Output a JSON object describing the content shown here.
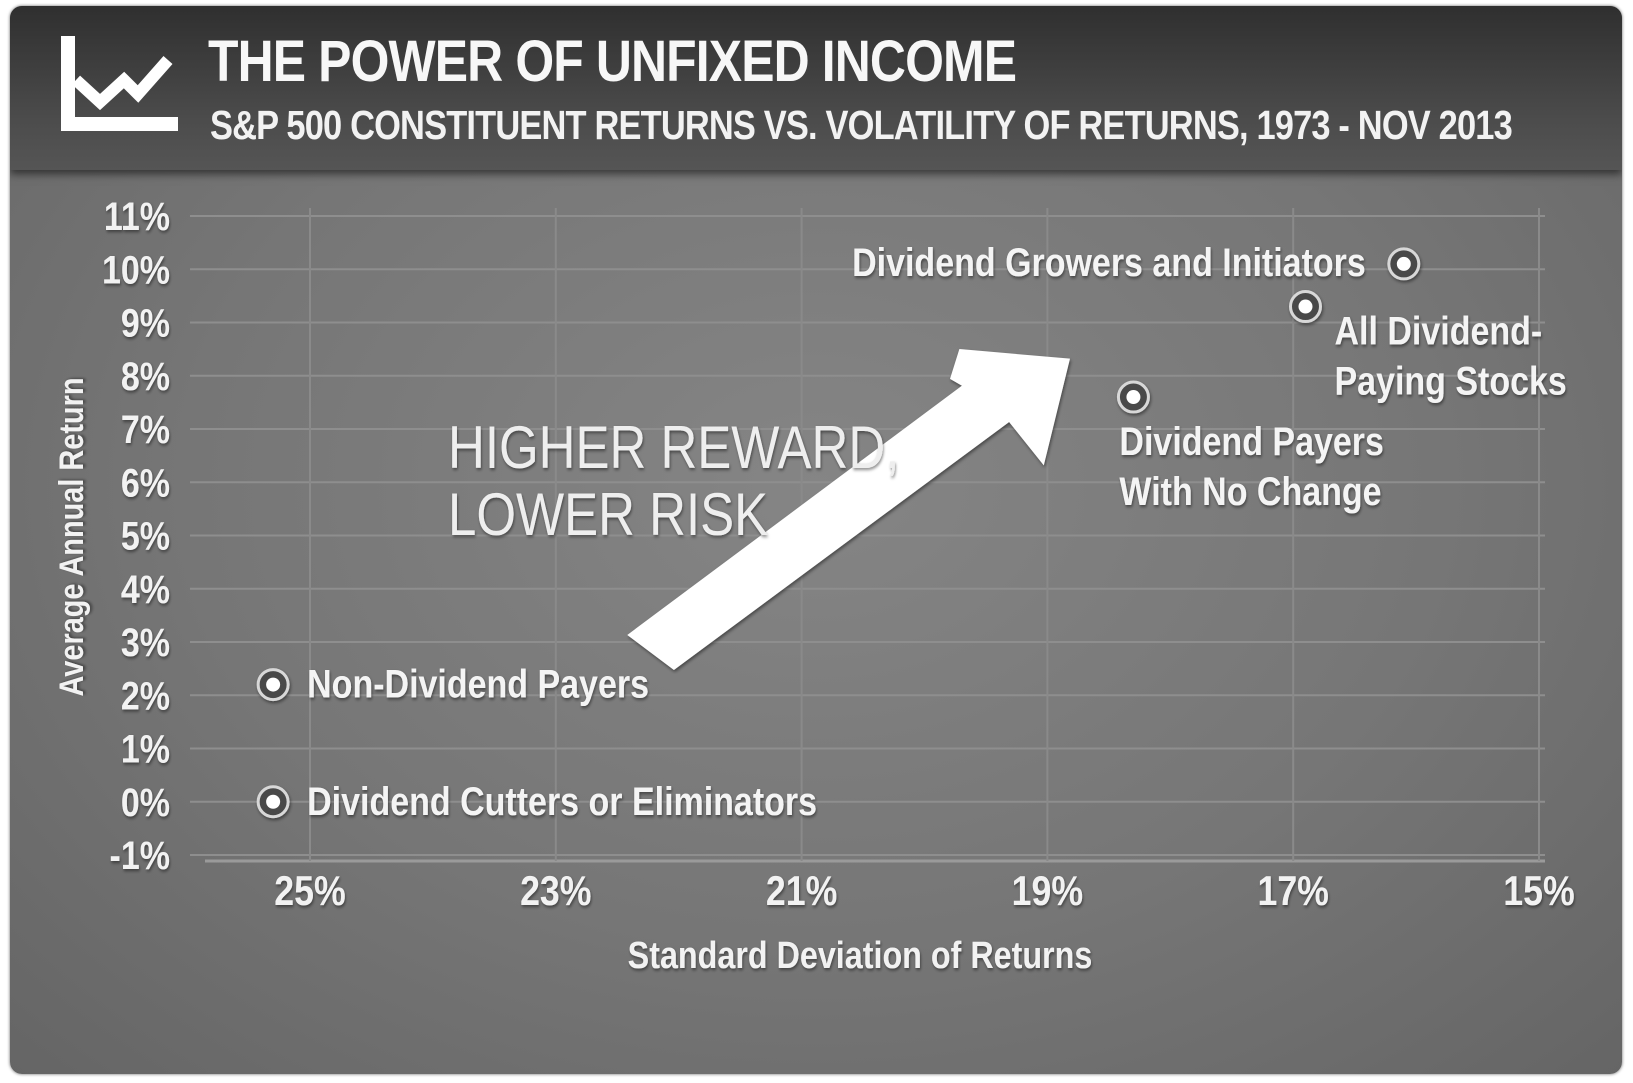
{
  "header": {
    "title": "THE POWER OF UNFIXED INCOME",
    "subtitle": "S&P 500 CONSTITUENT RETURNS VS. VOLATILITY OF RETURNS, 1973 - NOV 2013",
    "icon": "line-chart-icon"
  },
  "annotation": {
    "lines": [
      "HIGHER REWARD,",
      "LOWER RISK"
    ],
    "arrow_icon": "up-right-arrow-icon"
  },
  "colors": {
    "background": "#777777",
    "header": "#3c3c3c",
    "text": "#f2f2f2",
    "gridline": "#8a8a8a"
  },
  "chart_data": {
    "type": "scatter",
    "title": "THE POWER OF UNFIXED INCOME",
    "subtitle": "S&P 500 CONSTITUENT RETURNS VS. VOLATILITY OF RETURNS, 1973 - NOV 2013",
    "xlabel": "Standard Deviation of Returns",
    "ylabel": "Average Annual Return",
    "x_reversed": true,
    "xlim": [
      25,
      15
    ],
    "ylim": [
      -1,
      11
    ],
    "x_ticks": [
      25,
      23,
      21,
      19,
      17,
      15
    ],
    "x_tick_labels": [
      "25%",
      "23%",
      "21%",
      "19%",
      "17%",
      "15%"
    ],
    "y_ticks": [
      -1,
      0,
      1,
      2,
      3,
      4,
      5,
      6,
      7,
      8,
      9,
      10,
      11
    ],
    "y_tick_labels": [
      "-1%",
      "0%",
      "1%",
      "2%",
      "3%",
      "4%",
      "5%",
      "6%",
      "7%",
      "8%",
      "9%",
      "10%",
      "11%"
    ],
    "grid": true,
    "points": [
      {
        "label": [
          "Non-Dividend Payers"
        ],
        "x": 25.3,
        "y": 2.2
      },
      {
        "label": [
          "Dividend Cutters or Eliminators"
        ],
        "x": 25.3,
        "y": 0.0
      },
      {
        "label": [
          "Dividend Payers",
          "With No Change"
        ],
        "x": 18.3,
        "y": 7.6
      },
      {
        "label": [
          "All Dividend-",
          "Paying Stocks"
        ],
        "x": 16.9,
        "y": 9.3
      },
      {
        "label": [
          "Dividend Growers and Initiators"
        ],
        "x": 16.1,
        "y": 10.1
      }
    ]
  }
}
